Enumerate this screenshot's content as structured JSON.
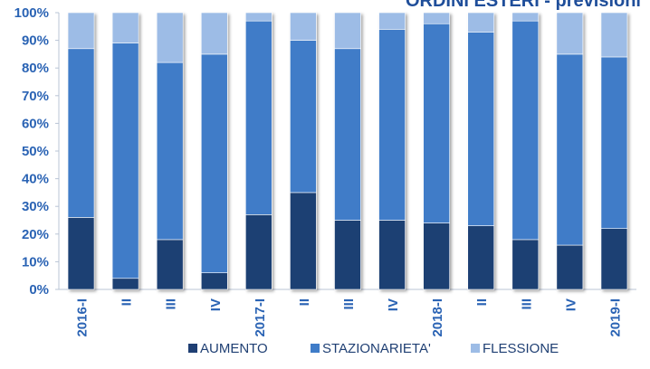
{
  "page": {
    "title": "ORDINI ESTERI - previsioni"
  },
  "chart_data": {
    "type": "bar",
    "stacked": true,
    "percent": true,
    "categories": [
      "2016-I",
      "II",
      "III",
      "IV",
      "2017-I",
      "II",
      "III",
      "IV",
      "2018-I",
      "II",
      "III",
      "IV",
      "2019-I"
    ],
    "series": [
      {
        "name": "AUMENTO",
        "color": "#1f3f73",
        "values": [
          26,
          4,
          18,
          6,
          27,
          35,
          25,
          25,
          24,
          23,
          18,
          16,
          22
        ]
      },
      {
        "name": "STAZIONARIETA'",
        "color": "#3f7cc8",
        "values": [
          61,
          85,
          64,
          79,
          70,
          55,
          62,
          69,
          72,
          70,
          79,
          69,
          62
        ]
      },
      {
        "name": "FLESSIONE",
        "color": "#9dbce6",
        "values": [
          13,
          11,
          18,
          15,
          3,
          10,
          13,
          6,
          4,
          7,
          3,
          15,
          16
        ]
      }
    ],
    "y_ticks": [
      "0%",
      "10%",
      "20%",
      "30%",
      "40%",
      "50%",
      "60%",
      "70%",
      "80%",
      "90%",
      "100%"
    ],
    "ylim": [
      0,
      100
    ],
    "grid": false,
    "legend_position": "bottom",
    "text_color": "#2a63b4"
  }
}
